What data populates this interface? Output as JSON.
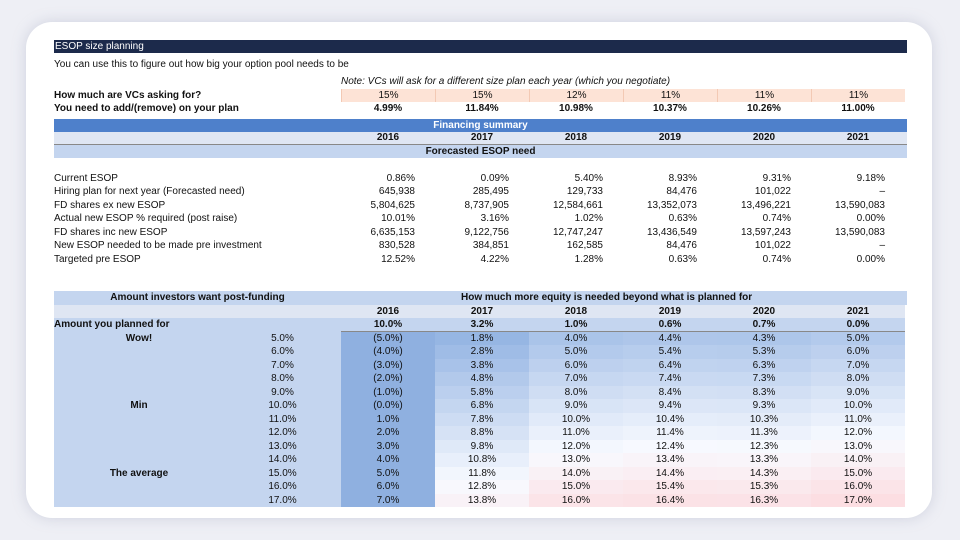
{
  "title": "ESOP size planning",
  "intro": "You can use this to figure out how big your option pool needs to be",
  "note": "Note: VCs will ask for a different size plan each year (which you negotiate)",
  "vc_asking": {
    "label": "How much are VCs asking for?",
    "values": [
      "15%",
      "15%",
      "12%",
      "11%",
      "11%",
      "11%"
    ]
  },
  "add_remove": {
    "label": "You need to add/(remove) on your plan",
    "values": [
      "4.99%",
      "11.84%",
      "10.98%",
      "10.37%",
      "10.26%",
      "11.00%"
    ]
  },
  "financing_summary": "Financing summary",
  "years": [
    "2016",
    "2017",
    "2018",
    "2019",
    "2020",
    "2021"
  ],
  "forecasted_title": "Forecasted ESOP need",
  "metrics": [
    {
      "label": "Current ESOP",
      "values": [
        "0.86%",
        "0.09%",
        "5.40%",
        "8.93%",
        "9.31%",
        "9.18%"
      ]
    },
    {
      "label": "Hiring plan for next year (Forecasted need)",
      "values": [
        "645,938",
        "285,495",
        "129,733",
        "84,476",
        "101,022",
        "–"
      ]
    },
    {
      "label": "FD shares ex new ESOP",
      "values": [
        "5,804,625",
        "8,737,905",
        "12,584,661",
        "13,352,073",
        "13,496,221",
        "13,590,083"
      ]
    },
    {
      "label": "Actual new ESOP % required (post raise)",
      "values": [
        "10.01%",
        "3.16%",
        "1.02%",
        "0.63%",
        "0.74%",
        "0.00%"
      ]
    },
    {
      "label": "FD shares inc new ESOP",
      "values": [
        "6,635,153",
        "9,122,756",
        "12,747,247",
        "13,436,549",
        "13,597,243",
        "13,590,083"
      ]
    },
    {
      "label": "New ESOP needed to be made pre investment",
      "values": [
        "830,528",
        "384,851",
        "162,585",
        "84,476",
        "101,022",
        "–"
      ]
    },
    {
      "label": "Targeted pre ESOP",
      "values": [
        "12.52%",
        "4.22%",
        "1.28%",
        "0.63%",
        "0.74%",
        "0.00%"
      ]
    }
  ],
  "sensitivity": {
    "left_header": "Amount investors want post-funding",
    "right_header": "How much more equity is needed beyond what is planned for",
    "planned_label": "Amount you planned for",
    "planned_values": [
      "10.0%",
      "3.2%",
      "1.0%",
      "0.6%",
      "0.7%",
      "0.0%"
    ],
    "rows": [
      {
        "tag": "Wow!",
        "pct": "5.0%",
        "values": [
          "(5.0%)",
          "1.8%",
          "4.0%",
          "4.4%",
          "4.3%",
          "5.0%"
        ]
      },
      {
        "tag": "",
        "pct": "6.0%",
        "values": [
          "(4.0%)",
          "2.8%",
          "5.0%",
          "5.4%",
          "5.3%",
          "6.0%"
        ]
      },
      {
        "tag": "",
        "pct": "7.0%",
        "values": [
          "(3.0%)",
          "3.8%",
          "6.0%",
          "6.4%",
          "6.3%",
          "7.0%"
        ]
      },
      {
        "tag": "",
        "pct": "8.0%",
        "values": [
          "(2.0%)",
          "4.8%",
          "7.0%",
          "7.4%",
          "7.3%",
          "8.0%"
        ]
      },
      {
        "tag": "",
        "pct": "9.0%",
        "values": [
          "(1.0%)",
          "5.8%",
          "8.0%",
          "8.4%",
          "8.3%",
          "9.0%"
        ]
      },
      {
        "tag": "Min",
        "pct": "10.0%",
        "values": [
          "(0.0%)",
          "6.8%",
          "9.0%",
          "9.4%",
          "9.3%",
          "10.0%"
        ]
      },
      {
        "tag": "",
        "pct": "11.0%",
        "values": [
          "1.0%",
          "7.8%",
          "10.0%",
          "10.4%",
          "10.3%",
          "11.0%"
        ]
      },
      {
        "tag": "",
        "pct": "12.0%",
        "values": [
          "2.0%",
          "8.8%",
          "11.0%",
          "11.4%",
          "11.3%",
          "12.0%"
        ]
      },
      {
        "tag": "",
        "pct": "13.0%",
        "values": [
          "3.0%",
          "9.8%",
          "12.0%",
          "12.4%",
          "12.3%",
          "13.0%"
        ]
      },
      {
        "tag": "",
        "pct": "14.0%",
        "values": [
          "4.0%",
          "10.8%",
          "13.0%",
          "13.4%",
          "13.3%",
          "14.0%"
        ]
      },
      {
        "tag": "The average",
        "pct": "15.0%",
        "values": [
          "5.0%",
          "11.8%",
          "14.0%",
          "14.4%",
          "14.3%",
          "15.0%"
        ]
      },
      {
        "tag": "",
        "pct": "16.0%",
        "values": [
          "6.0%",
          "12.8%",
          "15.0%",
          "15.4%",
          "15.3%",
          "16.0%"
        ]
      },
      {
        "tag": "",
        "pct": "17.0%",
        "values": [
          "7.0%",
          "13.8%",
          "16.0%",
          "16.4%",
          "16.3%",
          "17.0%"
        ]
      }
    ]
  },
  "colors": {
    "navy": "#1c2a4b",
    "bar": "#4e80cb",
    "light": "#c4d5ef",
    "peach": "#fde3d6"
  }
}
